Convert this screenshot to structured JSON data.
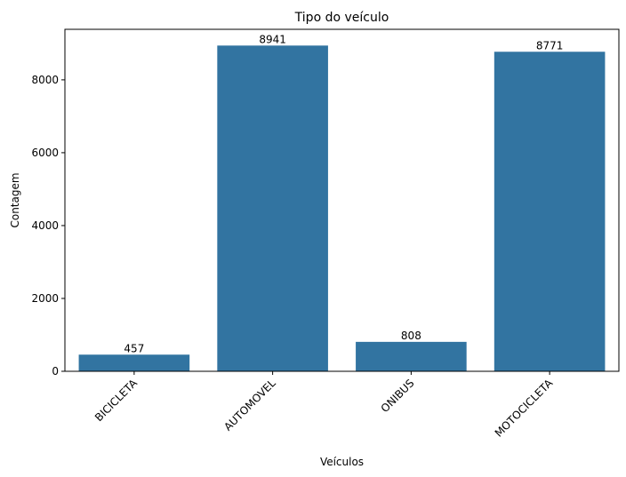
{
  "chart_data": {
    "type": "bar",
    "title": "Tipo do veículo",
    "xlabel": "Veículos",
    "ylabel": "Contagem",
    "categories": [
      "BICICLETA",
      "AUTOMOVEL",
      "ONIBUS",
      "MOTOCICLETA"
    ],
    "values": [
      457,
      8941,
      808,
      8771
    ],
    "data_labels": [
      "457",
      "8941",
      "808",
      "8771"
    ],
    "ylim": [
      0,
      9387
    ],
    "yticks": [
      0,
      2000,
      4000,
      6000,
      8000
    ],
    "ytick_labels": [
      "0",
      "2000",
      "4000",
      "6000",
      "8000"
    ],
    "xtick_rotation": 45,
    "bar_color": "#3274a1",
    "grid": false,
    "legend": false
  }
}
